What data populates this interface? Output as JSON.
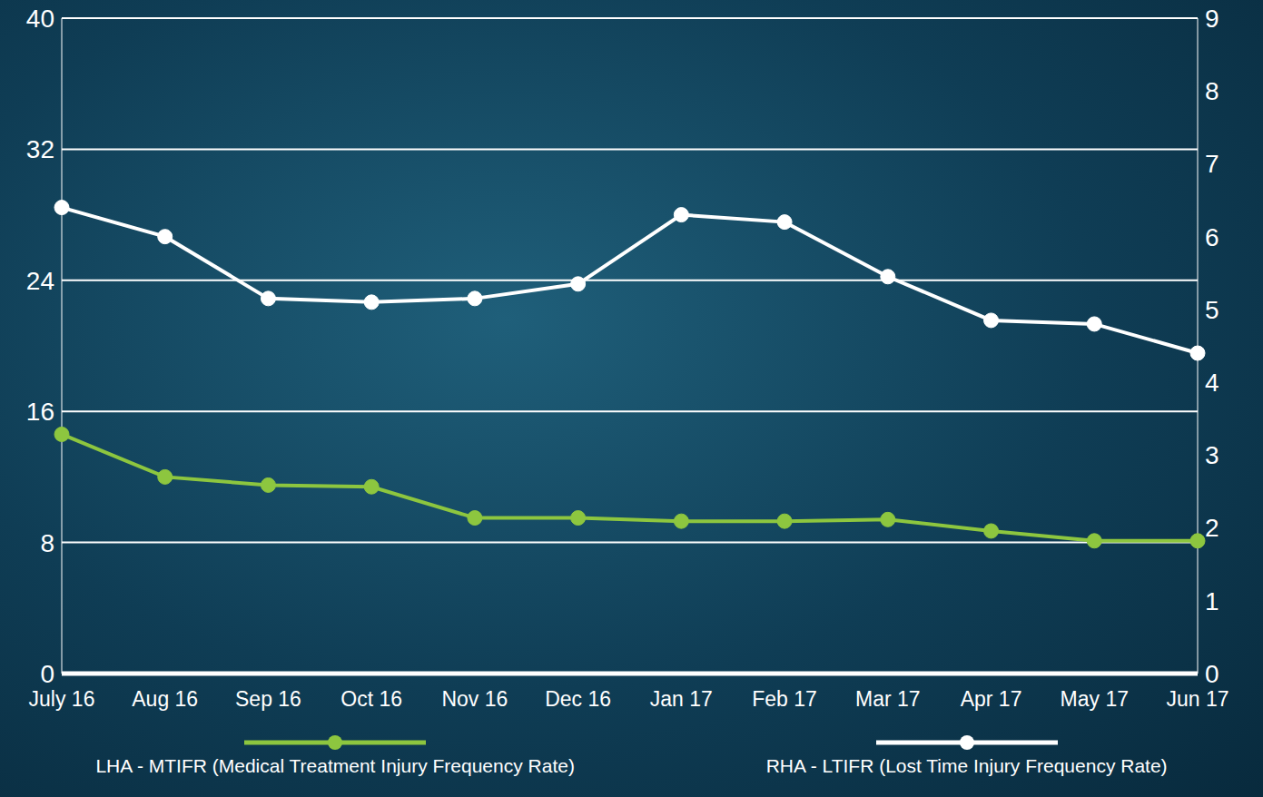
{
  "chart_data": {
    "type": "line",
    "categories": [
      "July 16",
      "Aug 16",
      "Sep 16",
      "Oct 16",
      "Nov 16",
      "Dec 16",
      "Jan 17",
      "Feb 17",
      "Mar 17",
      "Apr 17",
      "May 17",
      "Jun 17"
    ],
    "series": [
      {
        "name": "LHA - MTIFR (Medical Treatment Injury Frequency Rate)",
        "color": "#8dc63f",
        "values": [
          14.6,
          12.0,
          11.5,
          11.4,
          9.5,
          9.5,
          9.3,
          9.3,
          9.4,
          8.7,
          8.1,
          8.1
        ]
      },
      {
        "name": "RHA - LTIFR (Lost Time Injury Frequency Rate)",
        "color": "#ffffff",
        "axis": "y2",
        "values": [
          6.4,
          6.0,
          5.15,
          5.1,
          5.15,
          5.35,
          6.3,
          6.2,
          5.45,
          4.85,
          4.8,
          4.4
        ]
      }
    ],
    "ylim": [
      0,
      40
    ],
    "yticks": [
      0,
      8,
      16,
      24,
      32,
      40
    ],
    "y2lim": [
      0,
      9
    ],
    "y2ticks": [
      0,
      1,
      2,
      3,
      4,
      5,
      6,
      7,
      8,
      9
    ],
    "grid": true,
    "legend": "bottom",
    "marker": "circle"
  }
}
